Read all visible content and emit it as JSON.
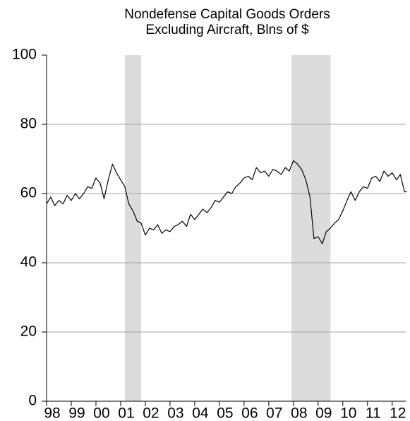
{
  "chart_data": {
    "type": "line",
    "title": [
      "Nondefense Capital Goods Orders",
      "Excluding Aircraft, Blns of $"
    ],
    "x": [
      1998.0,
      1998.17,
      1998.33,
      1998.5,
      1998.67,
      1998.83,
      1999.0,
      1999.17,
      1999.33,
      1999.5,
      1999.67,
      1999.83,
      2000.0,
      2000.17,
      2000.33,
      2000.5,
      2000.67,
      2000.83,
      2001.0,
      2001.17,
      2001.33,
      2001.5,
      2001.67,
      2001.83,
      2002.0,
      2002.17,
      2002.33,
      2002.5,
      2002.67,
      2002.83,
      2003.0,
      2003.17,
      2003.33,
      2003.5,
      2003.67,
      2003.83,
      2004.0,
      2004.17,
      2004.33,
      2004.5,
      2004.67,
      2004.83,
      2005.0,
      2005.17,
      2005.33,
      2005.5,
      2005.67,
      2005.83,
      2006.0,
      2006.17,
      2006.33,
      2006.5,
      2006.67,
      2006.83,
      2007.0,
      2007.17,
      2007.33,
      2007.5,
      2007.67,
      2007.83,
      2008.0,
      2008.17,
      2008.33,
      2008.5,
      2008.67,
      2008.83,
      2009.0,
      2009.17,
      2009.33,
      2009.5,
      2009.67,
      2009.83,
      2010.0,
      2010.17,
      2010.33,
      2010.5,
      2010.67,
      2010.83,
      2011.0,
      2011.17,
      2011.33,
      2011.5,
      2011.67,
      2011.83,
      2012.0,
      2012.17,
      2012.33,
      2012.5,
      2012.6
    ],
    "series": [
      {
        "color": "#000000",
        "values": [
          57,
          59,
          56.5,
          58,
          57,
          59.5,
          58,
          60,
          58.5,
          60,
          62,
          61.5,
          64.5,
          63,
          58.5,
          64,
          68.5,
          66,
          64,
          62,
          57,
          55,
          52,
          51.5,
          48,
          50,
          49.5,
          51,
          48.5,
          49.5,
          49,
          50.5,
          51,
          52,
          50.5,
          54,
          52.5,
          54,
          55.5,
          54.5,
          56,
          58,
          57.5,
          59,
          60.5,
          60,
          62,
          63,
          64.5,
          65,
          64,
          67.5,
          66,
          66.5,
          65,
          67,
          66.5,
          65.5,
          67.5,
          66.5,
          69.5,
          68.5,
          67,
          64,
          59,
          47,
          47.5,
          45.5,
          49,
          50,
          51.5,
          52.5,
          55,
          58,
          60.5,
          58,
          60.5,
          62,
          61.5,
          64.5,
          65,
          63.5,
          66.5,
          65,
          66,
          64,
          65.5,
          60.5,
          60.5
        ]
      }
    ],
    "shaded_regions": [
      [
        2001.17,
        2001.83
      ],
      [
        2007.92,
        2009.5
      ]
    ],
    "shade_color": "#dcdcdc",
    "xlim": [
      1998,
      2012.55
    ],
    "xticks": [
      {
        "value": 1998,
        "label": "98"
      },
      {
        "value": 1999,
        "label": "99"
      },
      {
        "value": 2000,
        "label": "00"
      },
      {
        "value": 2001,
        "label": "01"
      },
      {
        "value": 2002,
        "label": "02"
      },
      {
        "value": 2003,
        "label": "03"
      },
      {
        "value": 2004,
        "label": "04"
      },
      {
        "value": 2005,
        "label": "05"
      },
      {
        "value": 2006,
        "label": "06"
      },
      {
        "value": 2007,
        "label": "07"
      },
      {
        "value": 2008,
        "label": "08"
      },
      {
        "value": 2009,
        "label": "09"
      },
      {
        "value": 2010,
        "label": "10"
      },
      {
        "value": 2011,
        "label": "11"
      },
      {
        "value": 2012,
        "label": "12"
      }
    ],
    "ylim": [
      0,
      100
    ],
    "yticks": [
      0,
      20,
      40,
      60,
      80,
      100
    ],
    "grid": true
  }
}
